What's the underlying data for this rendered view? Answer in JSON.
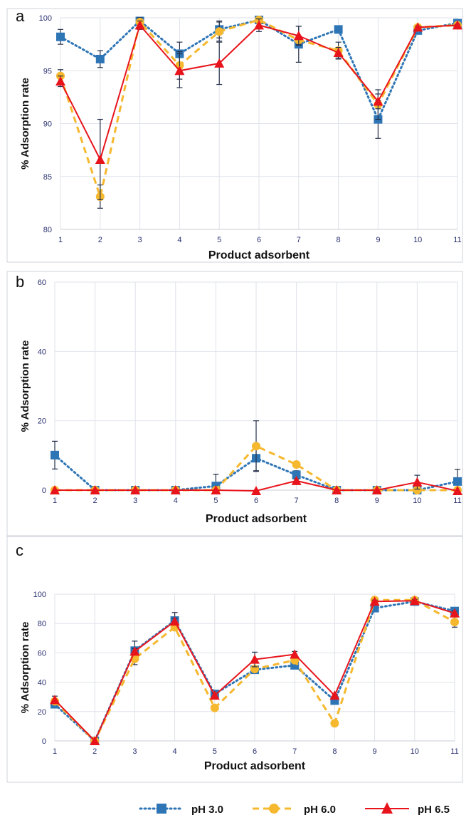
{
  "colors": {
    "ph3": "#2e75b6",
    "ph6": "#f5b82e",
    "ph65": "#e8141c",
    "grid": "#dfe2ea",
    "axis_text": "#2a3170",
    "panel_border": "#cfd3da"
  },
  "legend": [
    {
      "label": "pH 3.0",
      "style": "dotted",
      "marker": "square",
      "color": "#2e75b6"
    },
    {
      "label": "pH 6.0",
      "style": "dashed",
      "marker": "circle",
      "color": "#f5b82e"
    },
    {
      "label": "pH 6.5",
      "style": "solid",
      "marker": "triangle",
      "color": "#e8141c"
    }
  ],
  "chart_data": [
    {
      "panel": "a",
      "type": "line",
      "xlabel": "Product adsorbent",
      "ylabel": "% Adsorption rate",
      "ylim": [
        80,
        100
      ],
      "yticks": [
        80,
        85,
        90,
        95,
        100
      ],
      "x": [
        1,
        2,
        3,
        4,
        5,
        6,
        7,
        8,
        9,
        10,
        11
      ],
      "grid": true,
      "series": [
        {
          "name": "pH 3.0",
          "values": [
            98.2,
            96.1,
            99.7,
            96.6,
            98.9,
            99.8,
            97.5,
            98.9,
            90.4,
            98.8,
            99.5
          ],
          "errors": [
            0.7,
            0.8,
            0.3,
            1.1,
            0.8,
            0.3,
            1.7,
            0.2,
            1.8,
            0.2,
            0.1
          ]
        },
        {
          "name": "pH 6.0",
          "values": [
            94.5,
            83.1,
            99.6,
            95.5,
            98.7,
            99.8,
            97.9,
            96.9,
            91.8,
            99.1,
            99.3
          ],
          "errors": [
            0.6,
            1.1,
            0.4,
            1.3,
            0.9,
            0.2,
            0.4,
            0.8,
            1.4,
            0.1,
            0.1
          ]
        },
        {
          "name": "pH 6.5",
          "values": [
            94.0,
            86.6,
            99.3,
            95.0,
            95.7,
            99.3,
            98.3,
            96.7,
            92.1,
            99.1,
            99.3
          ],
          "errors": [
            0.5,
            3.8,
            0.4,
            1.6,
            2.0,
            0.6,
            0.9,
            0.5,
            0.7,
            0.1,
            0.1
          ]
        }
      ]
    },
    {
      "panel": "b",
      "type": "line",
      "xlabel": "Product adsorbent",
      "ylabel": "% Adsorption rate",
      "ylim": [
        0,
        60
      ],
      "yticks": [
        0,
        20,
        40,
        60
      ],
      "x": [
        1,
        2,
        3,
        4,
        5,
        6,
        7,
        8,
        9,
        10,
        11
      ],
      "grid": true,
      "series": [
        {
          "name": "pH 3.0",
          "values": [
            10.1,
            0,
            0,
            0,
            1.2,
            9.2,
            4.4,
            0,
            0,
            0,
            2.5
          ],
          "errors": [
            4.0,
            0,
            0,
            0,
            3.4,
            3.6,
            1.2,
            0,
            0,
            0,
            3.5
          ]
        },
        {
          "name": "pH 6.0",
          "values": [
            0,
            0,
            0,
            0,
            0,
            12.7,
            7.4,
            0,
            0,
            0,
            0
          ],
          "errors": [
            0,
            0,
            0,
            0,
            0,
            7.3,
            0.8,
            0,
            0,
            0,
            0
          ]
        },
        {
          "name": "pH 6.5",
          "values": [
            0,
            0,
            0,
            0,
            0,
            -0.2,
            2.7,
            0,
            0,
            2.3,
            -0.2
          ],
          "errors": [
            0,
            0,
            0,
            0,
            0,
            0,
            0.5,
            0,
            0,
            2.0,
            0
          ]
        }
      ]
    },
    {
      "panel": "c",
      "type": "line",
      "xlabel": "Product adsorbent",
      "ylabel": "% Adsorption rate",
      "ylim": [
        0,
        100
      ],
      "yticks": [
        0,
        20,
        40,
        60,
        80,
        100
      ],
      "x": [
        1,
        2,
        3,
        4,
        5,
        6,
        7,
        8,
        9,
        10,
        11
      ],
      "grid": true,
      "series": [
        {
          "name": "pH 3.0",
          "values": [
            25,
            0,
            61.5,
            82,
            32,
            48.5,
            51.5,
            27.5,
            90.5,
            95,
            88.5
          ],
          "errors": [
            2.0,
            0,
            6.5,
            5.5,
            1.5,
            2.0,
            1.5,
            1.5,
            1.0,
            1.0,
            1.5
          ]
        },
        {
          "name": "pH 6.0",
          "values": [
            27,
            0,
            56,
            77.5,
            22.5,
            49,
            55,
            12,
            96,
            96,
            81
          ],
          "errors": [
            1.5,
            0,
            4.0,
            1.5,
            1.0,
            1.5,
            1.0,
            1.0,
            1.0,
            1.5,
            3.5
          ]
        },
        {
          "name": "pH 6.5",
          "values": [
            28,
            0,
            61,
            81.5,
            31,
            55.5,
            59,
            31,
            95,
            95.5,
            87
          ],
          "errors": [
            2.5,
            0,
            2.0,
            2.0,
            1.5,
            5.0,
            2.0,
            1.0,
            1.0,
            1.0,
            1.5
          ]
        }
      ]
    }
  ]
}
